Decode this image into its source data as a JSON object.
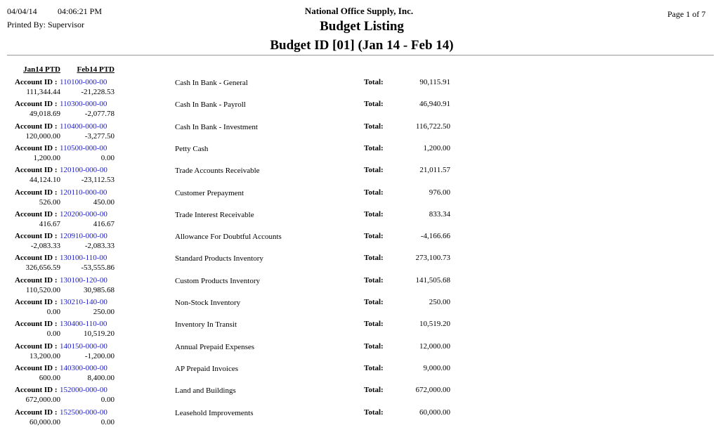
{
  "header": {
    "date": "04/04/14",
    "time": "04:06:21 PM",
    "printed_by": "Printed By: Supervisor",
    "company": "National Office Supply, Inc.",
    "title": "Budget Listing",
    "subtitle": "Budget ID [01] (Jan 14 - Feb 14)",
    "page": "Page 1 of  7"
  },
  "columns": {
    "jan": "Jan14 PTD",
    "feb": "Feb14 PTD"
  },
  "labels": {
    "account_id": "Account ID :",
    "total": "Total:"
  },
  "accent_color": "#1a1acc",
  "rows": [
    {
      "account": "110100-000-00",
      "jan": "111,344.44",
      "feb": "-21,228.53",
      "description": "Cash In Bank - General",
      "total": "90,115.91"
    },
    {
      "account": "110300-000-00",
      "jan": "49,018.69",
      "feb": "-2,077.78",
      "description": "Cash In Bank - Payroll",
      "total": "46,940.91"
    },
    {
      "account": "110400-000-00",
      "jan": "120,000.00",
      "feb": "-3,277.50",
      "description": "Cash In Bank - Investment",
      "total": "116,722.50"
    },
    {
      "account": "110500-000-00",
      "jan": "1,200.00",
      "feb": "0.00",
      "description": "Petty Cash",
      "total": "1,200.00"
    },
    {
      "account": "120100-000-00",
      "jan": "44,124.10",
      "feb": "-23,112.53",
      "description": "Trade Accounts Receivable",
      "total": "21,011.57"
    },
    {
      "account": "120110-000-00",
      "jan": "526.00",
      "feb": "450.00",
      "description": "Customer Prepayment",
      "total": "976.00"
    },
    {
      "account": "120200-000-00",
      "jan": "416.67",
      "feb": "416.67",
      "description": "Trade Interest Receivable",
      "total": "833.34"
    },
    {
      "account": "120910-000-00",
      "jan": "-2,083.33",
      "feb": "-2,083.33",
      "description": "Allowance For Doubtful Accounts",
      "total": "-4,166.66"
    },
    {
      "account": "130100-110-00",
      "jan": "326,656.59",
      "feb": "-53,555.86",
      "description": "Standard Products Inventory",
      "total": "273,100.73"
    },
    {
      "account": "130100-120-00",
      "jan": "110,520.00",
      "feb": "30,985.68",
      "description": "Custom Products Inventory",
      "total": "141,505.68"
    },
    {
      "account": "130210-140-00",
      "jan": "0.00",
      "feb": "250.00",
      "description": "Non-Stock Inventory",
      "total": "250.00"
    },
    {
      "account": "130400-110-00",
      "jan": "0.00",
      "feb": "10,519.20",
      "description": "Inventory In Transit",
      "total": "10,519.20"
    },
    {
      "account": "140150-000-00",
      "jan": "13,200.00",
      "feb": "-1,200.00",
      "description": "Annual Prepaid Expenses",
      "total": "12,000.00"
    },
    {
      "account": "140300-000-00",
      "jan": "600.00",
      "feb": "8,400.00",
      "description": "AP Prepaid Invoices",
      "total": "9,000.00"
    },
    {
      "account": "152000-000-00",
      "jan": "672,000.00",
      "feb": "0.00",
      "description": "Land and Buildings",
      "total": "672,000.00"
    },
    {
      "account": "152500-000-00",
      "jan": "60,000.00",
      "feb": "0.00",
      "description": "Leasehold Improvements",
      "total": "60,000.00"
    }
  ]
}
